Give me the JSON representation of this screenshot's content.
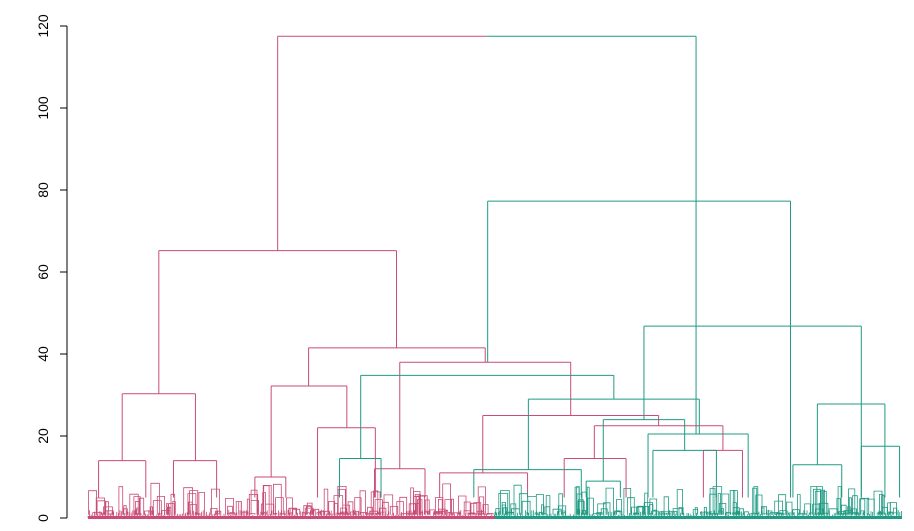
{
  "chart_data": {
    "type": "dendrogram",
    "title": "",
    "xlabel": "",
    "ylabel": "",
    "ylim": [
      0,
      120
    ],
    "yticks": [
      0,
      20,
      40,
      60,
      80,
      100,
      120
    ],
    "grid": false,
    "colors": {
      "left_cluster": "#c94b76",
      "right_cluster": "#1f9b84",
      "axis": "#000000"
    },
    "x_extent": [
      0,
      1
    ],
    "merges": [
      {
        "name": "root",
        "x1": 0.233,
        "x2": 0.747,
        "height": 117.5,
        "cluster": "split"
      },
      {
        "name": "L",
        "x1": 0.087,
        "x2": 0.379,
        "height": 65.2,
        "cluster": "left"
      },
      {
        "name": "L1",
        "x1": 0.042,
        "x2": 0.132,
        "height": 30.3,
        "cluster": "left"
      },
      {
        "name": "L1a",
        "x1": 0.013,
        "x2": 0.071,
        "height": 14.0,
        "cluster": "left"
      },
      {
        "name": "L1b",
        "x1": 0.105,
        "x2": 0.158,
        "height": 14.0,
        "cluster": "left"
      },
      {
        "name": "L2",
        "x1": 0.271,
        "x2": 0.488,
        "height": 41.5,
        "cluster": "left"
      },
      {
        "name": "L2a",
        "x1": 0.225,
        "x2": 0.318,
        "height": 32.2,
        "cluster": "left"
      },
      {
        "name": "L2a1",
        "x1": 0.205,
        "x2": 0.243,
        "height": 10.0,
        "cluster": "left"
      },
      {
        "name": "L2a2",
        "x1": 0.282,
        "x2": 0.353,
        "height": 22.0,
        "cluster": "left"
      },
      {
        "name": "L2b",
        "x1": 0.383,
        "x2": 0.593,
        "height": 38.0,
        "cluster": "left"
      },
      {
        "name": "L2b1",
        "x1": 0.352,
        "x2": 0.414,
        "height": 12.0,
        "cluster": "left"
      },
      {
        "name": "L2b2",
        "x1": 0.485,
        "x2": 0.701,
        "height": 25.0,
        "cluster": "left"
      },
      {
        "name": "L2b2a",
        "x1": 0.432,
        "x2": 0.54,
        "height": 11.0,
        "cluster": "left"
      },
      {
        "name": "L2b2b",
        "x1": 0.622,
        "x2": 0.78,
        "height": 22.5,
        "cluster": "left"
      },
      {
        "name": "L2b2b1",
        "x1": 0.585,
        "x2": 0.661,
        "height": 14.5,
        "cluster": "left"
      },
      {
        "name": "L2b2b2",
        "x1": 0.756,
        "x2": 0.804,
        "height": 16.5,
        "cluster": "left"
      },
      {
        "name": "R",
        "x1": 0.491,
        "x2": 0.863,
        "height": 77.3,
        "cluster": "right"
      },
      {
        "name": "R1",
        "x1": 0.335,
        "x2": 0.646,
        "height": 34.8,
        "cluster": "right"
      },
      {
        "name": "R1a",
        "x1": 0.309,
        "x2": 0.36,
        "height": 14.5,
        "cluster": "right"
      },
      {
        "name": "R1b",
        "x1": 0.541,
        "x2": 0.751,
        "height": 29.0,
        "cluster": "right"
      },
      {
        "name": "R1b1",
        "x1": 0.474,
        "x2": 0.606,
        "height": 11.8,
        "cluster": "right"
      },
      {
        "name": "R1b2",
        "x1": 0.688,
        "x2": 0.811,
        "height": 20.5,
        "cluster": "right"
      },
      {
        "name": "R2",
        "x1": 0.683,
        "x2": 0.95,
        "height": 46.8,
        "cluster": "right"
      },
      {
        "name": "R2a",
        "x1": 0.633,
        "x2": 0.733,
        "height": 24.0,
        "cluster": "right"
      },
      {
        "name": "R2a1",
        "x1": 0.612,
        "x2": 0.654,
        "height": 9.0,
        "cluster": "right"
      },
      {
        "name": "R2a2",
        "x1": 0.694,
        "x2": 0.772,
        "height": 16.5,
        "cluster": "right"
      },
      {
        "name": "R2b",
        "x1": 0.896,
        "x2": 0.979,
        "height": 27.8,
        "cluster": "right"
      },
      {
        "name": "R2b1",
        "x1": 0.866,
        "x2": 0.926,
        "height": 13.0,
        "cluster": "right"
      },
      {
        "name": "R2b2",
        "x1": 0.95,
        "x2": 0.997,
        "height": 17.5,
        "cluster": "right"
      }
    ],
    "leaf_clusters": [
      {
        "cluster": "left",
        "x_range": [
          0.0,
          0.5
        ],
        "max_height": 7.5
      },
      {
        "cluster": "right",
        "x_range": [
          0.5,
          1.0
        ],
        "max_height": 7.0
      }
    ]
  }
}
